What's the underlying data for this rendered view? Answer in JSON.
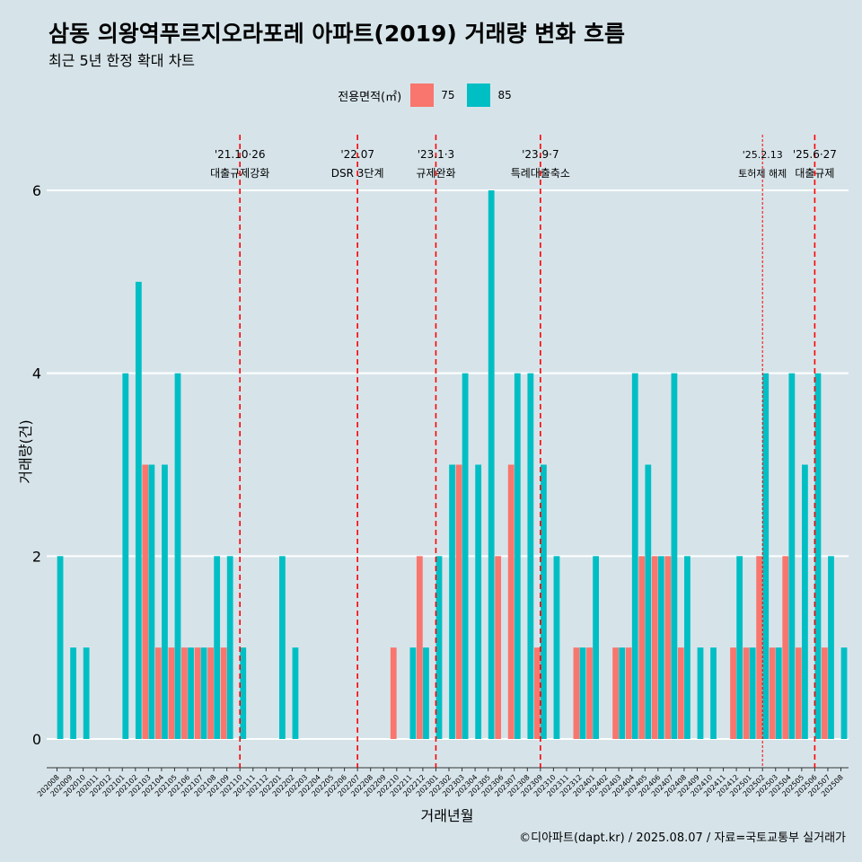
{
  "title": "삼동 의왕역푸르지오라포레 아파트(2019) 거래량 변화 흐름",
  "subtitle": "최근 5년 한정 확대 차트",
  "caption": "©디아파트(dapt.kr) / 2025.08.07 / 자료=국토교통부 실거래가",
  "colors": {
    "75": "#f8766d",
    "85": "#00bfc4",
    "vline": "#ff0000",
    "grid": "#ffffff"
  },
  "chart_data": {
    "type": "bar",
    "xlabel": "거래년월",
    "ylabel": "거래량(건)",
    "ylim": [
      0,
      6
    ],
    "yticks": [
      0,
      2,
      4,
      6
    ],
    "legend": {
      "title": "전용면적(㎡)",
      "position": "top"
    },
    "categories": [
      "202008",
      "202009",
      "202010",
      "202011",
      "202012",
      "202101",
      "202102",
      "202103",
      "202104",
      "202105",
      "202106",
      "202107",
      "202108",
      "202109",
      "202110",
      "202111",
      "202112",
      "202201",
      "202202",
      "202203",
      "202204",
      "202205",
      "202206",
      "202207",
      "202208",
      "202209",
      "202210",
      "202211",
      "202212",
      "202301",
      "202302",
      "202303",
      "202304",
      "202305",
      "202306",
      "202307",
      "202308",
      "202309",
      "202310",
      "202311",
      "202312",
      "202401",
      "202402",
      "202403",
      "202404",
      "202405",
      "202406",
      "202407",
      "202408",
      "202409",
      "202410",
      "202411",
      "202412",
      "202501",
      "202502",
      "202503",
      "202504",
      "202505",
      "202506",
      "202507",
      "202508"
    ],
    "series": [
      {
        "name": "75",
        "values": [
          0,
          0,
          0,
          0,
          0,
          0,
          0,
          3,
          1,
          1,
          1,
          1,
          1,
          1,
          0,
          0,
          0,
          0,
          0,
          0,
          0,
          0,
          0,
          0,
          0,
          0,
          1,
          0,
          2,
          0,
          0,
          3,
          0,
          0,
          2,
          3,
          0,
          1,
          0,
          0,
          1,
          1,
          0,
          1,
          1,
          2,
          2,
          2,
          1,
          0,
          0,
          0,
          1,
          1,
          2,
          1,
          2,
          1,
          0,
          1,
          0
        ]
      },
      {
        "name": "85",
        "values": [
          2,
          1,
          1,
          0,
          0,
          4,
          5,
          3,
          3,
          4,
          1,
          1,
          2,
          2,
          1,
          0,
          0,
          2,
          1,
          0,
          0,
          0,
          0,
          0,
          0,
          0,
          0,
          1,
          1,
          2,
          3,
          4,
          3,
          6,
          0,
          4,
          4,
          3,
          2,
          0,
          1,
          2,
          0,
          1,
          4,
          3,
          2,
          4,
          2,
          1,
          1,
          0,
          2,
          1,
          4,
          1,
          4,
          3,
          4,
          2,
          1
        ]
      }
    ],
    "annotations": [
      {
        "x": "202110",
        "line1": "'21.10·26",
        "line2": "대출규제강화",
        "style": "dashed"
      },
      {
        "x": "202207",
        "line1": "'22.07",
        "line2": "DSR 3단계",
        "style": "dashed"
      },
      {
        "x": "202301",
        "line1": "'23.1·3",
        "line2": "규제완화",
        "style": "dashed"
      },
      {
        "x": "202309",
        "line1": "'23.9·7",
        "line2": "특례대출축소",
        "style": "dashed"
      },
      {
        "x": "202502",
        "line1": "'25.2.13",
        "line2": "토허제 해제",
        "style": "dotted"
      },
      {
        "x": "202506",
        "line1": "'25.6·27",
        "line2": "대출규제",
        "style": "dashed"
      }
    ]
  }
}
